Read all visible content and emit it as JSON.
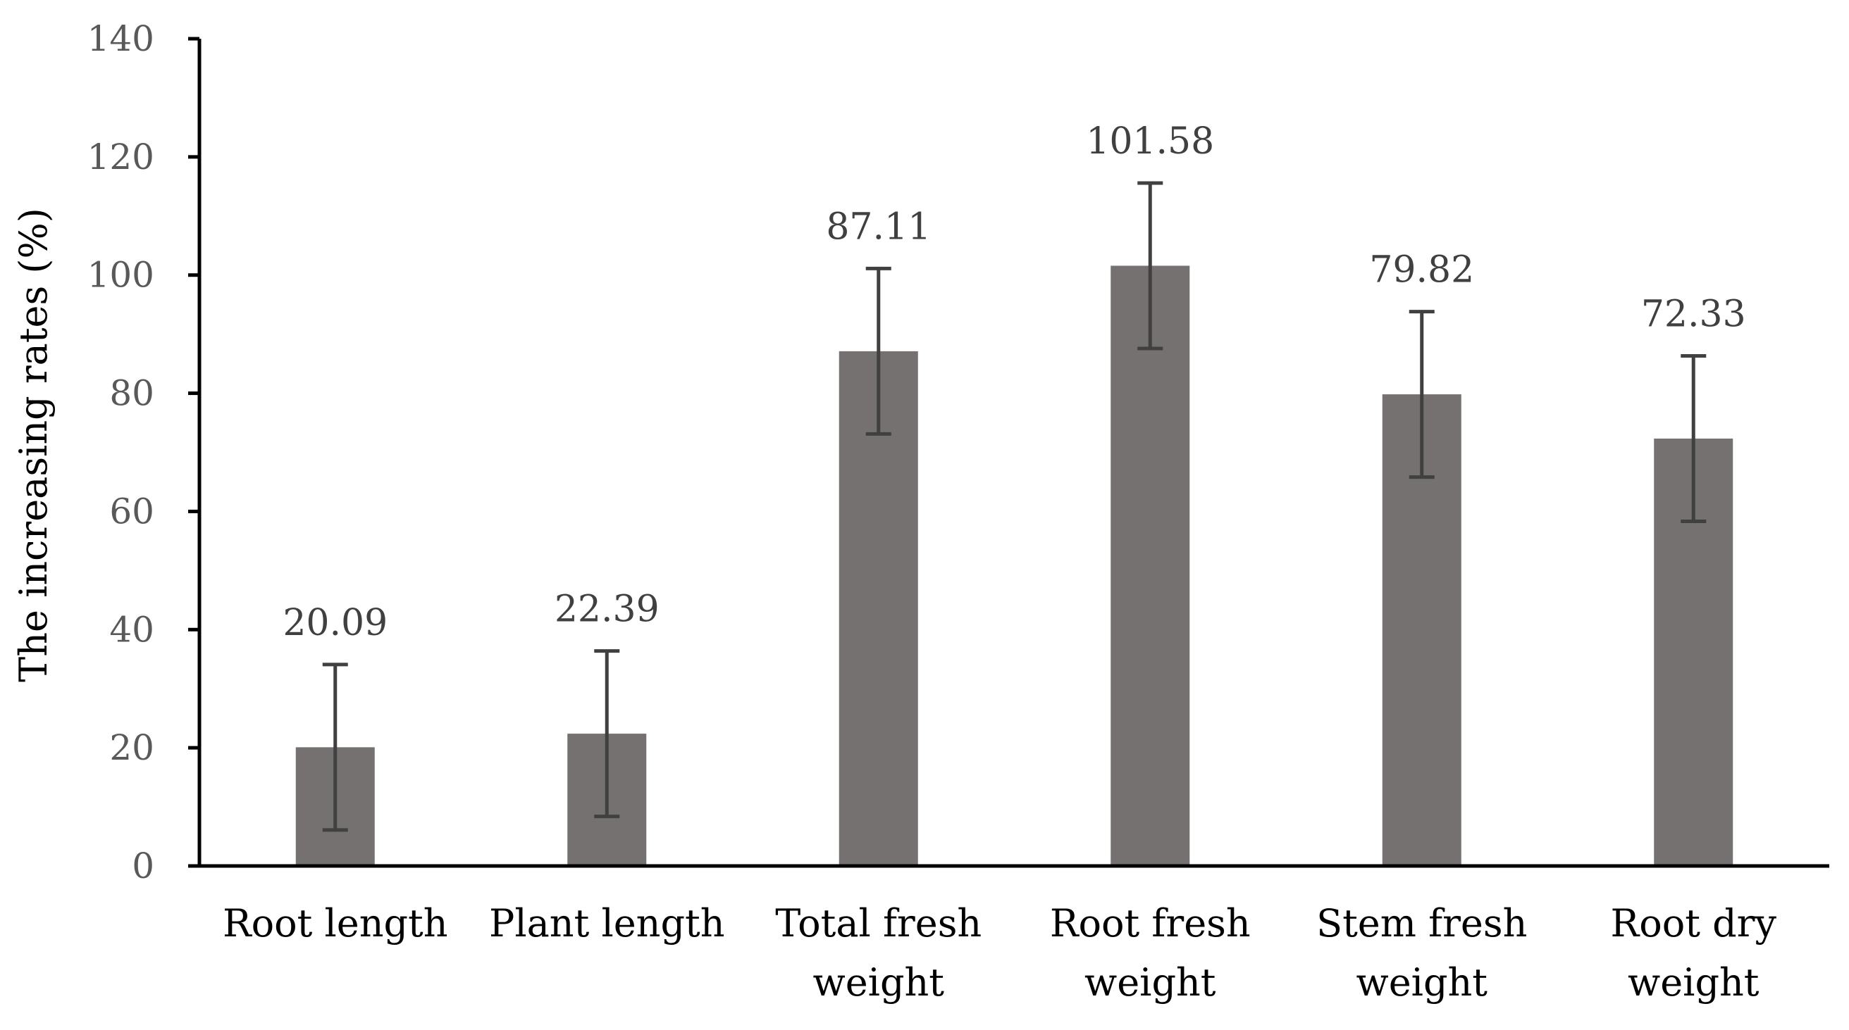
{
  "chart_data": {
    "type": "bar",
    "title": "",
    "xlabel": "",
    "ylabel": "The increasing rates (%)",
    "ylim": [
      0,
      140
    ],
    "yticks": [
      0,
      20,
      40,
      60,
      80,
      100,
      120,
      140
    ],
    "ytick_labels": [
      "0",
      "20",
      "40",
      "60",
      "80",
      "100",
      "120",
      "140"
    ],
    "grid": false,
    "legend": false,
    "categories": [
      [
        "Root length"
      ],
      [
        "Plant length"
      ],
      [
        "Total fresh",
        "weight"
      ],
      [
        "Root fresh",
        "weight"
      ],
      [
        "Stem fresh",
        "weight"
      ],
      [
        "Root dry",
        "weight"
      ]
    ],
    "values": [
      20.09,
      22.39,
      87.11,
      101.58,
      79.82,
      72.33
    ],
    "value_labels": [
      "20.09",
      "22.39",
      "87.11",
      "101.58",
      "79.82",
      "72.33"
    ],
    "error": [
      14,
      14,
      14,
      14,
      14,
      14
    ],
    "colors": {
      "bar": "#757171",
      "error_bar": "#404040",
      "axis": "#000000"
    }
  }
}
